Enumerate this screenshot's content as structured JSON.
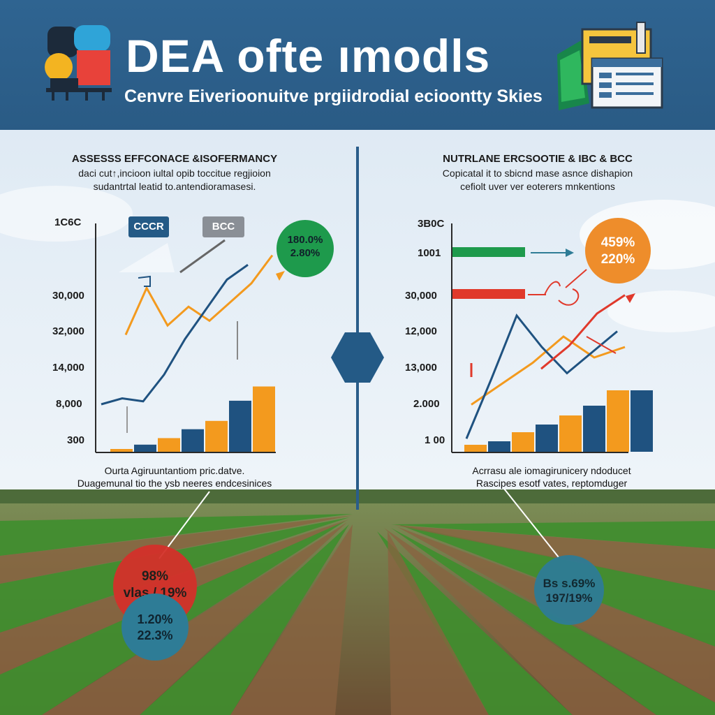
{
  "header": {
    "title": "DEA ofte ımodls",
    "subtitle": "Cenvre Eiverioonuitve prgiidrodial ecioontty Skies"
  },
  "left_panel": {
    "title": "ASSESSS EFFCONACE &ISOFERMANCY",
    "desc_line1": "daci cut↑,incioon iultal opib toccitue regjioion",
    "desc_line2": "sudantrtal leatid to.antendioramasesi.",
    "tag_a": "CCCR",
    "tag_b": "BCC",
    "badge": {
      "line1": "180.0%",
      "line2": "2.80%"
    },
    "caption_line1": "Ourta Agiruuntantiom pric.datve.",
    "caption_line2": "Duagemunal tio the ysb neeres endcesinices",
    "bubble_red": {
      "line1": "98%",
      "line2": "vlas / 19%"
    },
    "bubble_teal": {
      "line1": "1.20%",
      "line2": "22.3%"
    }
  },
  "right_panel": {
    "title": "NUTRLANE ERCSOOTIE & IBC & BCC",
    "desc_line1": "Copicatal it to sbicnd mase asnce dishapion",
    "desc_line2": "cefiolt uver ver eoterers mnkentions",
    "badge": {
      "line1": "459%",
      "line2": "220%"
    },
    "caption_line1": "Acrrasu ale iomagirunicery ndoducet",
    "caption_line2": "Rascipes esotf vates, reptomduger",
    "bubble_teal": {
      "line1": "Bs s.69%",
      "line2": "197/19%"
    }
  },
  "colors": {
    "header": "#2d5f8b",
    "navy": "#1f5280",
    "orange": "#f39a1e",
    "green": "#1e9a4c",
    "red": "#e0392b",
    "teal": "#2e7c96"
  },
  "chart_data": [
    {
      "type": "bar",
      "title": "ASSESSS EFFCONACE &ISOFERMANCY",
      "ytick_labels": [
        "1C6C",
        "30,000",
        "32,000",
        "14,000",
        "8,000",
        "300"
      ],
      "series": [
        {
          "name": "",
          "values": [
            300,
            1200,
            2300,
            3800,
            5200,
            8600,
            11000
          ],
          "color": "orange-navy-alternating"
        }
      ],
      "lines": [
        {
          "color": "navy",
          "values": [
            8000,
            9000,
            8500,
            13000,
            19000,
            24000,
            29000,
            31500
          ]
        },
        {
          "color": "orange",
          "values": [
            25000,
            35000,
            27000,
            31000,
            28000,
            32000,
            36000,
            42000
          ]
        }
      ]
    },
    {
      "type": "bar",
      "title": "NUTRLANE ERCSOOTIE & IBC & BCC",
      "ytick_labels": [
        "3B0C",
        "1001",
        "30,000",
        "12,000",
        "13,000",
        "2.000",
        "1 00"
      ],
      "series": [
        {
          "name": "",
          "values": [
            1000,
            1500,
            2800,
            3900,
            5200,
            6600,
            8800,
            8800
          ],
          "color": "orange-navy-alternating"
        }
      ],
      "lines": [
        {
          "color": "navy",
          "values": [
            2500,
            14000,
            26000,
            20000,
            15000,
            19000,
            23000
          ]
        },
        {
          "color": "orange",
          "values": [
            9000,
            13000,
            17000,
            22000,
            18000,
            20000
          ]
        },
        {
          "color": "red",
          "values": [
            18000,
            23000,
            30000,
            34000
          ]
        }
      ]
    }
  ]
}
